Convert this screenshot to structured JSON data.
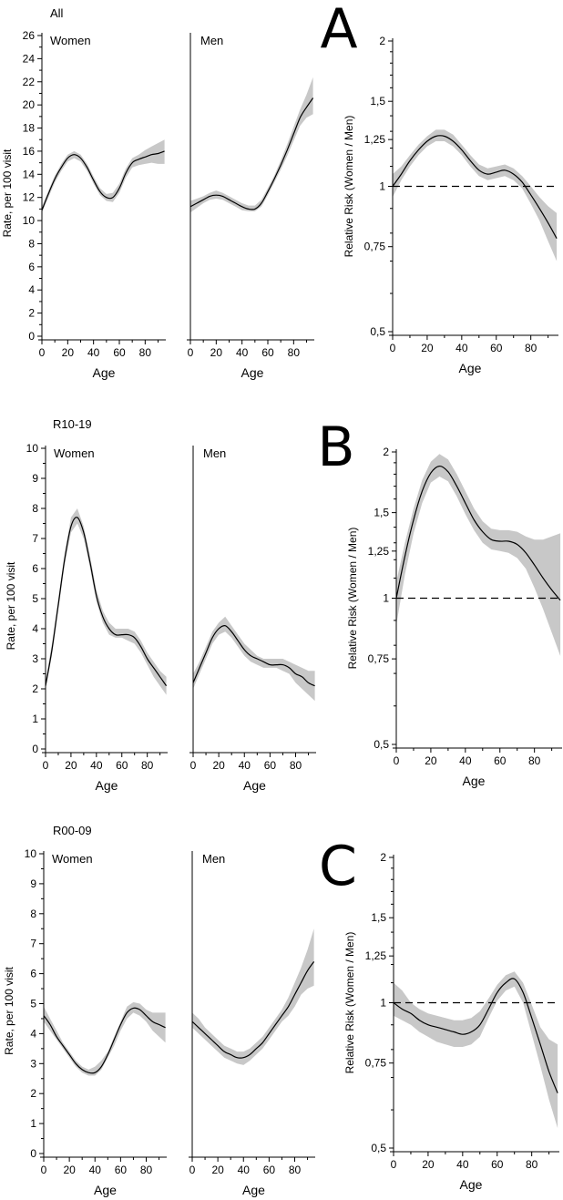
{
  "chart_data": [
    {
      "panel": "A",
      "title": "All",
      "charts": [
        {
          "type": "line",
          "subtitle": "Women",
          "xlabel": "Age",
          "ylabel": "Rate, per 100 visit",
          "xlim": [
            0,
            96
          ],
          "ylim": [
            0,
            26
          ],
          "xticks": [
            0,
            20,
            40,
            60,
            80
          ],
          "yticks": [
            0,
            2,
            4,
            6,
            8,
            10,
            12,
            14,
            16,
            18,
            20,
            22,
            24,
            26
          ],
          "x": [
            0,
            5,
            10,
            15,
            20,
            25,
            30,
            35,
            40,
            45,
            50,
            55,
            60,
            65,
            70,
            75,
            80,
            85,
            90,
            95
          ],
          "y": [
            10.9,
            12.3,
            13.6,
            14.6,
            15.4,
            15.7,
            15.4,
            14.6,
            13.5,
            12.5,
            12.0,
            12.0,
            12.8,
            14.1,
            15.0,
            15.3,
            15.5,
            15.7,
            15.8,
            16.0
          ],
          "lower": [
            10.7,
            12.0,
            13.3,
            14.3,
            15.1,
            15.4,
            15.1,
            14.3,
            13.2,
            12.2,
            11.7,
            11.6,
            12.4,
            13.7,
            14.6,
            14.8,
            14.9,
            15.0,
            14.9,
            14.9
          ],
          "upper": [
            11.2,
            12.6,
            13.9,
            14.9,
            15.7,
            16.0,
            15.7,
            14.9,
            13.8,
            12.8,
            12.3,
            12.4,
            13.2,
            14.5,
            15.4,
            15.7,
            16.1,
            16.4,
            16.7,
            17.0
          ]
        },
        {
          "type": "line",
          "subtitle": "Men",
          "xlabel": "Age",
          "xlim": [
            0,
            96
          ],
          "ylim": [
            0,
            26
          ],
          "xticks": [
            0,
            20,
            40,
            60,
            80
          ],
          "x": [
            0,
            5,
            10,
            15,
            20,
            25,
            30,
            35,
            40,
            45,
            50,
            55,
            60,
            65,
            70,
            75,
            80,
            85,
            90,
            95
          ],
          "y": [
            11.2,
            11.5,
            11.8,
            12.1,
            12.2,
            12.1,
            11.8,
            11.5,
            11.2,
            11.0,
            11.0,
            11.5,
            12.5,
            13.6,
            14.8,
            16.1,
            17.5,
            18.9,
            19.8,
            20.6
          ],
          "lower": [
            10.7,
            11.1,
            11.5,
            11.8,
            11.9,
            11.8,
            11.5,
            11.2,
            10.9,
            10.8,
            10.8,
            11.2,
            12.2,
            13.3,
            14.4,
            15.6,
            16.9,
            18.2,
            18.9,
            19.2
          ],
          "upper": [
            11.7,
            11.9,
            12.1,
            12.4,
            12.6,
            12.4,
            12.1,
            11.8,
            11.5,
            11.3,
            11.3,
            11.8,
            12.8,
            13.9,
            15.2,
            16.6,
            18.1,
            19.6,
            20.9,
            22.4
          ]
        },
        {
          "type": "line",
          "xlabel": "Age",
          "ylabel": "Relative Risk (Women / Men)",
          "scale": "log",
          "xlim": [
            0,
            96
          ],
          "ylim": [
            0.5,
            2
          ],
          "xticks": [
            0,
            20,
            40,
            60,
            80
          ],
          "yticks": [
            0.5,
            0.75,
            1,
            1.25,
            1.5,
            2
          ],
          "ytick_labels": [
            "0,5",
            "0,75",
            "1",
            "1,25",
            "1,5",
            "2"
          ],
          "reference_line": 1,
          "x": [
            0,
            5,
            10,
            15,
            20,
            25,
            30,
            35,
            40,
            45,
            50,
            55,
            60,
            65,
            70,
            75,
            80,
            85,
            90,
            95
          ],
          "y": [
            1.0,
            1.06,
            1.13,
            1.19,
            1.24,
            1.27,
            1.27,
            1.24,
            1.19,
            1.13,
            1.08,
            1.06,
            1.07,
            1.08,
            1.06,
            1.02,
            0.96,
            0.9,
            0.84,
            0.78
          ],
          "lower": [
            0.95,
            1.03,
            1.1,
            1.16,
            1.21,
            1.24,
            1.24,
            1.21,
            1.16,
            1.1,
            1.05,
            1.03,
            1.04,
            1.05,
            1.03,
            0.99,
            0.92,
            0.85,
            0.77,
            0.7
          ],
          "upper": [
            1.06,
            1.1,
            1.16,
            1.22,
            1.27,
            1.31,
            1.31,
            1.28,
            1.22,
            1.16,
            1.11,
            1.09,
            1.1,
            1.11,
            1.09,
            1.05,
            1.0,
            0.95,
            0.91,
            0.88
          ]
        }
      ]
    },
    {
      "panel": "B",
      "title": "R10-19",
      "charts": [
        {
          "type": "line",
          "subtitle": "Women",
          "xlabel": "Age",
          "ylabel": "Rate, per 100 visit",
          "xlim": [
            0,
            96
          ],
          "ylim": [
            0,
            10
          ],
          "xticks": [
            0,
            20,
            40,
            60,
            80
          ],
          "yticks": [
            0,
            1,
            2,
            3,
            4,
            5,
            6,
            7,
            8,
            9,
            10
          ],
          "x": [
            0,
            5,
            10,
            15,
            20,
            25,
            30,
            35,
            40,
            45,
            50,
            55,
            60,
            65,
            70,
            75,
            80,
            85,
            90,
            95
          ],
          "y": [
            2.1,
            3.3,
            4.8,
            6.3,
            7.4,
            7.7,
            7.2,
            6.2,
            5.1,
            4.4,
            4.0,
            3.8,
            3.8,
            3.8,
            3.7,
            3.4,
            3.0,
            2.7,
            2.4,
            2.1
          ],
          "lower": [
            2.0,
            3.1,
            4.6,
            6.1,
            7.2,
            7.5,
            7.0,
            6.0,
            4.9,
            4.2,
            3.8,
            3.7,
            3.7,
            3.6,
            3.5,
            3.2,
            2.8,
            2.4,
            2.1,
            1.8
          ],
          "upper": [
            2.3,
            3.5,
            5.0,
            6.5,
            7.7,
            8.0,
            7.4,
            6.4,
            5.3,
            4.6,
            4.2,
            4.0,
            4.0,
            4.0,
            3.9,
            3.6,
            3.2,
            2.9,
            2.6,
            2.4
          ]
        },
        {
          "type": "line",
          "subtitle": "Men",
          "xlabel": "Age",
          "xlim": [
            0,
            96
          ],
          "ylim": [
            0,
            10
          ],
          "xticks": [
            0,
            20,
            40,
            60,
            80
          ],
          "x": [
            0,
            5,
            10,
            15,
            20,
            25,
            30,
            35,
            40,
            45,
            50,
            55,
            60,
            65,
            70,
            75,
            80,
            85,
            90,
            95
          ],
          "y": [
            2.2,
            2.7,
            3.2,
            3.7,
            4.0,
            4.1,
            3.9,
            3.6,
            3.3,
            3.1,
            3.0,
            2.9,
            2.8,
            2.8,
            2.8,
            2.7,
            2.5,
            2.4,
            2.2,
            2.1
          ],
          "lower": [
            2.0,
            2.5,
            3.0,
            3.5,
            3.8,
            3.9,
            3.7,
            3.4,
            3.1,
            2.9,
            2.8,
            2.7,
            2.7,
            2.7,
            2.6,
            2.5,
            2.2,
            2.0,
            1.8,
            1.6
          ],
          "upper": [
            2.5,
            2.9,
            3.4,
            3.9,
            4.2,
            4.4,
            4.1,
            3.8,
            3.5,
            3.3,
            3.1,
            3.0,
            3.0,
            3.0,
            3.0,
            2.9,
            2.8,
            2.7,
            2.6,
            2.6
          ]
        },
        {
          "type": "line",
          "xlabel": "Age",
          "ylabel": "Relative Risk (Women / Men)",
          "scale": "log",
          "xlim": [
            0,
            96
          ],
          "ylim": [
            0.5,
            2
          ],
          "xticks": [
            0,
            20,
            40,
            60,
            80
          ],
          "yticks": [
            0.5,
            0.75,
            1,
            1.25,
            1.5,
            2
          ],
          "ytick_labels": [
            "0,5",
            "0,75",
            "1",
            "1,25",
            "1,5",
            "2"
          ],
          "reference_line": 1,
          "x": [
            0,
            5,
            10,
            15,
            20,
            25,
            30,
            35,
            40,
            45,
            50,
            55,
            60,
            65,
            70,
            75,
            80,
            85,
            90,
            95
          ],
          "y": [
            1.0,
            1.22,
            1.45,
            1.66,
            1.81,
            1.87,
            1.82,
            1.7,
            1.57,
            1.45,
            1.37,
            1.32,
            1.31,
            1.31,
            1.29,
            1.24,
            1.17,
            1.1,
            1.04,
            0.99
          ],
          "lower": [
            0.88,
            1.12,
            1.36,
            1.57,
            1.73,
            1.78,
            1.74,
            1.62,
            1.49,
            1.38,
            1.3,
            1.26,
            1.25,
            1.24,
            1.21,
            1.15,
            1.05,
            0.95,
            0.85,
            0.76
          ],
          "upper": [
            1.08,
            1.3,
            1.53,
            1.75,
            1.91,
            1.98,
            1.93,
            1.8,
            1.66,
            1.53,
            1.44,
            1.39,
            1.38,
            1.38,
            1.37,
            1.34,
            1.32,
            1.32,
            1.34,
            1.36
          ]
        }
      ]
    },
    {
      "panel": "C",
      "title": "R00-09",
      "charts": [
        {
          "type": "line",
          "subtitle": "Women",
          "xlabel": "Age",
          "ylabel": "Rate, per 100 visit",
          "xlim": [
            0,
            96
          ],
          "ylim": [
            0,
            10
          ],
          "xticks": [
            0,
            20,
            40,
            60,
            80
          ],
          "yticks": [
            0,
            1,
            2,
            3,
            4,
            5,
            6,
            7,
            8,
            9,
            10
          ],
          "x": [
            0,
            5,
            10,
            15,
            20,
            25,
            30,
            35,
            40,
            45,
            50,
            55,
            60,
            65,
            70,
            75,
            80,
            85,
            90,
            95
          ],
          "y": [
            4.6,
            4.3,
            3.9,
            3.6,
            3.3,
            3.0,
            2.8,
            2.7,
            2.7,
            2.9,
            3.3,
            3.8,
            4.3,
            4.7,
            4.85,
            4.8,
            4.6,
            4.4,
            4.3,
            4.2
          ],
          "lower": [
            4.4,
            4.1,
            3.8,
            3.5,
            3.2,
            2.9,
            2.7,
            2.6,
            2.6,
            2.8,
            3.2,
            3.6,
            4.1,
            4.5,
            4.7,
            4.6,
            4.4,
            4.1,
            3.9,
            3.7
          ],
          "upper": [
            4.9,
            4.5,
            4.1,
            3.7,
            3.4,
            3.1,
            2.9,
            2.8,
            2.9,
            3.1,
            3.4,
            3.9,
            4.4,
            4.9,
            5.05,
            5.0,
            4.8,
            4.7,
            4.7,
            4.7
          ]
        },
        {
          "type": "line",
          "subtitle": "Men",
          "xlabel": "Age",
          "xlim": [
            0,
            96
          ],
          "ylim": [
            0,
            10
          ],
          "xticks": [
            0,
            20,
            40,
            60,
            80
          ],
          "x": [
            0,
            5,
            10,
            15,
            20,
            25,
            30,
            35,
            40,
            45,
            50,
            55,
            60,
            65,
            70,
            75,
            80,
            85,
            90,
            95
          ],
          "y": [
            4.4,
            4.2,
            4.0,
            3.8,
            3.6,
            3.4,
            3.3,
            3.2,
            3.2,
            3.3,
            3.5,
            3.7,
            4.0,
            4.3,
            4.6,
            4.9,
            5.3,
            5.7,
            6.1,
            6.4
          ],
          "lower": [
            4.2,
            4.0,
            3.8,
            3.6,
            3.4,
            3.2,
            3.1,
            3.0,
            2.95,
            3.1,
            3.3,
            3.5,
            3.8,
            4.1,
            4.4,
            4.6,
            4.9,
            5.3,
            5.5,
            5.6
          ],
          "upper": [
            4.7,
            4.5,
            4.2,
            4.0,
            3.8,
            3.6,
            3.5,
            3.4,
            3.4,
            3.5,
            3.7,
            3.9,
            4.2,
            4.5,
            4.8,
            5.2,
            5.7,
            6.2,
            6.8,
            7.5
          ]
        },
        {
          "type": "line",
          "xlabel": "Age",
          "ylabel": "Relative Risk (Women / Men)",
          "scale": "log",
          "xlim": [
            0,
            96
          ],
          "ylim": [
            0.5,
            2
          ],
          "xticks": [
            0,
            20,
            40,
            60,
            80
          ],
          "yticks": [
            0.5,
            0.75,
            1,
            1.25,
            1.5,
            2
          ],
          "ytick_labels": [
            "0,5",
            "0,75",
            "1",
            "1,25",
            "1,5",
            "2"
          ],
          "reference_line": 1,
          "x": [
            0,
            5,
            10,
            15,
            20,
            25,
            30,
            35,
            40,
            45,
            50,
            55,
            60,
            65,
            70,
            75,
            80,
            85,
            90,
            95
          ],
          "y": [
            1.0,
            0.97,
            0.95,
            0.92,
            0.9,
            0.89,
            0.88,
            0.87,
            0.86,
            0.87,
            0.9,
            0.97,
            1.05,
            1.1,
            1.12,
            1.05,
            0.93,
            0.82,
            0.72,
            0.65
          ],
          "lower": [
            0.94,
            0.92,
            0.9,
            0.87,
            0.85,
            0.83,
            0.82,
            0.81,
            0.81,
            0.82,
            0.85,
            0.93,
            1.01,
            1.06,
            1.08,
            1.0,
            0.86,
            0.74,
            0.63,
            0.55
          ],
          "upper": [
            1.1,
            1.06,
            1.0,
            0.97,
            0.95,
            0.94,
            0.93,
            0.92,
            0.92,
            0.93,
            0.96,
            1.02,
            1.09,
            1.14,
            1.16,
            1.1,
            0.99,
            0.89,
            0.84,
            0.82
          ]
        }
      ]
    }
  ]
}
